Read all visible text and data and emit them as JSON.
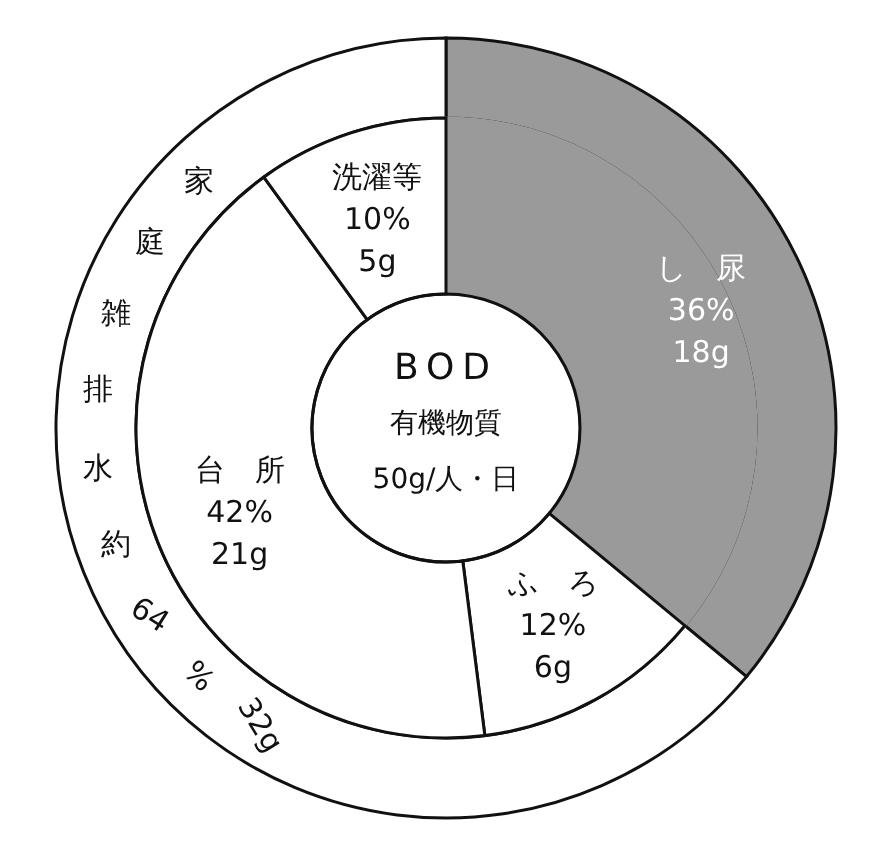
{
  "chart_data": [
    {
      "type": "donut",
      "categories": [
        "し　尿",
        "ふ　ろ",
        "台　所",
        "洗濯等"
      ],
      "values": [
        36,
        12,
        42,
        10
      ],
      "colors": [
        "#9a9a9a",
        "#ffffff",
        "#ffffff",
        "#ffffff"
      ],
      "value_labels": [
        "36%\n18g",
        "12%\n6g",
        "42%\n21g",
        "10%\n5g"
      ],
      "annotations": [
        "BOD",
        "有機物質",
        "50g/人・日"
      ]
    },
    {
      "type": "donut",
      "categories": [
        null,
        "家庭雑排水"
      ],
      "values": [
        36,
        64
      ],
      "colors": [
        "#9a9a9a",
        "#ffffff"
      ],
      "value_labels": [
        null,
        "約64%32g"
      ]
    }
  ]
}
